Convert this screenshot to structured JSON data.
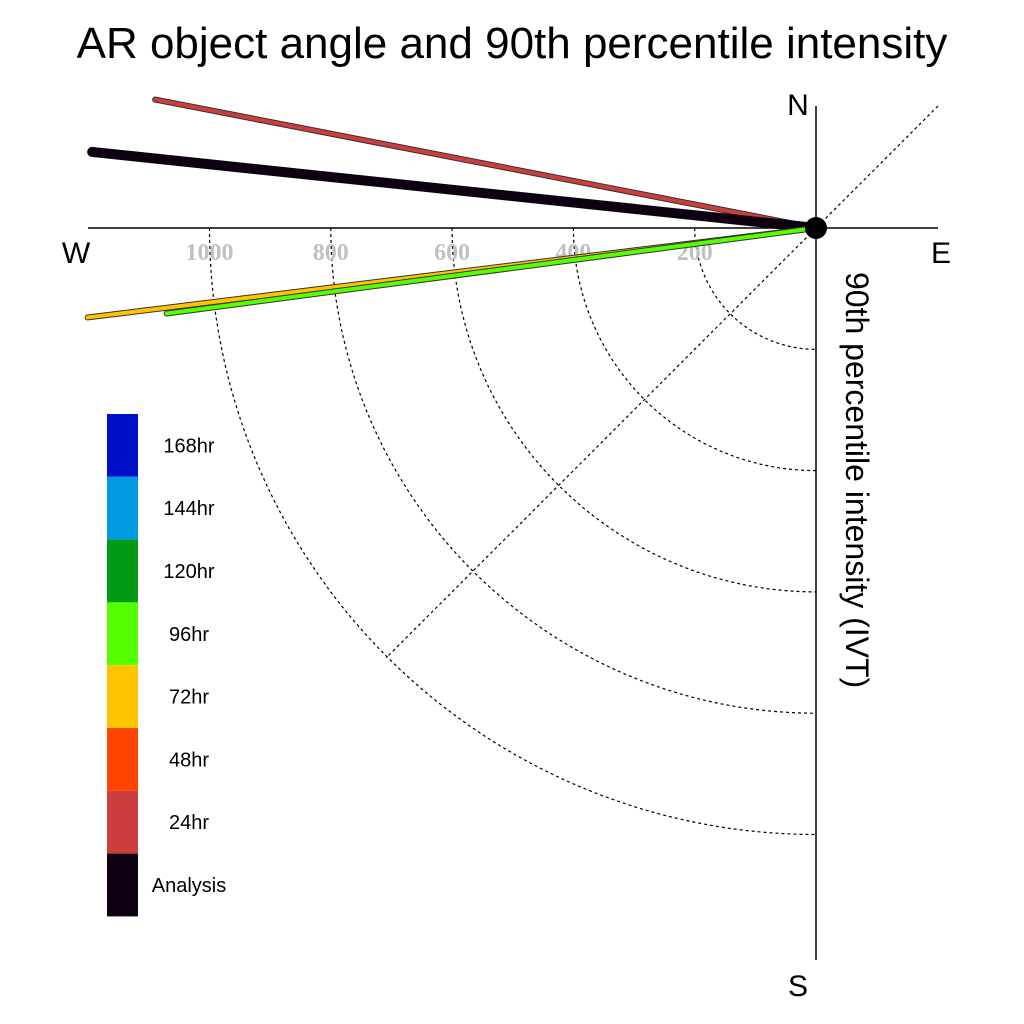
{
  "chart_data": {
    "type": "polar-vector",
    "title": "AR object angle and 90th percentile intensity",
    "ylabel": "90th percentile intensity (IVT)",
    "compass": {
      "north": "N",
      "south": "S",
      "east": "E",
      "west": "W"
    },
    "radius_max": 1200,
    "rings": [
      200,
      400,
      600,
      800,
      1000
    ],
    "ring_labels": [
      "1000",
      "800",
      "600",
      "400",
      "200"
    ],
    "series": [
      {
        "name": "24hr",
        "color": "#cc3d3d",
        "angle_deg": 169,
        "magnitude": 1110
      },
      {
        "name": "Analysis",
        "color": "#0d0010",
        "angle_deg": 174,
        "magnitude": 1200
      },
      {
        "name": "72hr",
        "color": "#ffc400",
        "angle_deg": 187,
        "magnitude": 1210
      },
      {
        "name": "96hr",
        "color": "#55ff00",
        "angle_deg": 187.5,
        "magnitude": 1080
      }
    ],
    "legend": [
      {
        "label": "168hr",
        "color": "#0010c8"
      },
      {
        "label": "144hr",
        "color": "#009ae0"
      },
      {
        "label": "120hr",
        "color": "#009a14"
      },
      {
        "label": "96hr",
        "color": "#55ff00"
      },
      {
        "label": "72hr",
        "color": "#ffc400"
      },
      {
        "label": "48hr",
        "color": "#ff4400"
      },
      {
        "label": "24hr",
        "color": "#cc3d3d"
      },
      {
        "label": "Analysis",
        "color": "#0d0010"
      }
    ]
  }
}
